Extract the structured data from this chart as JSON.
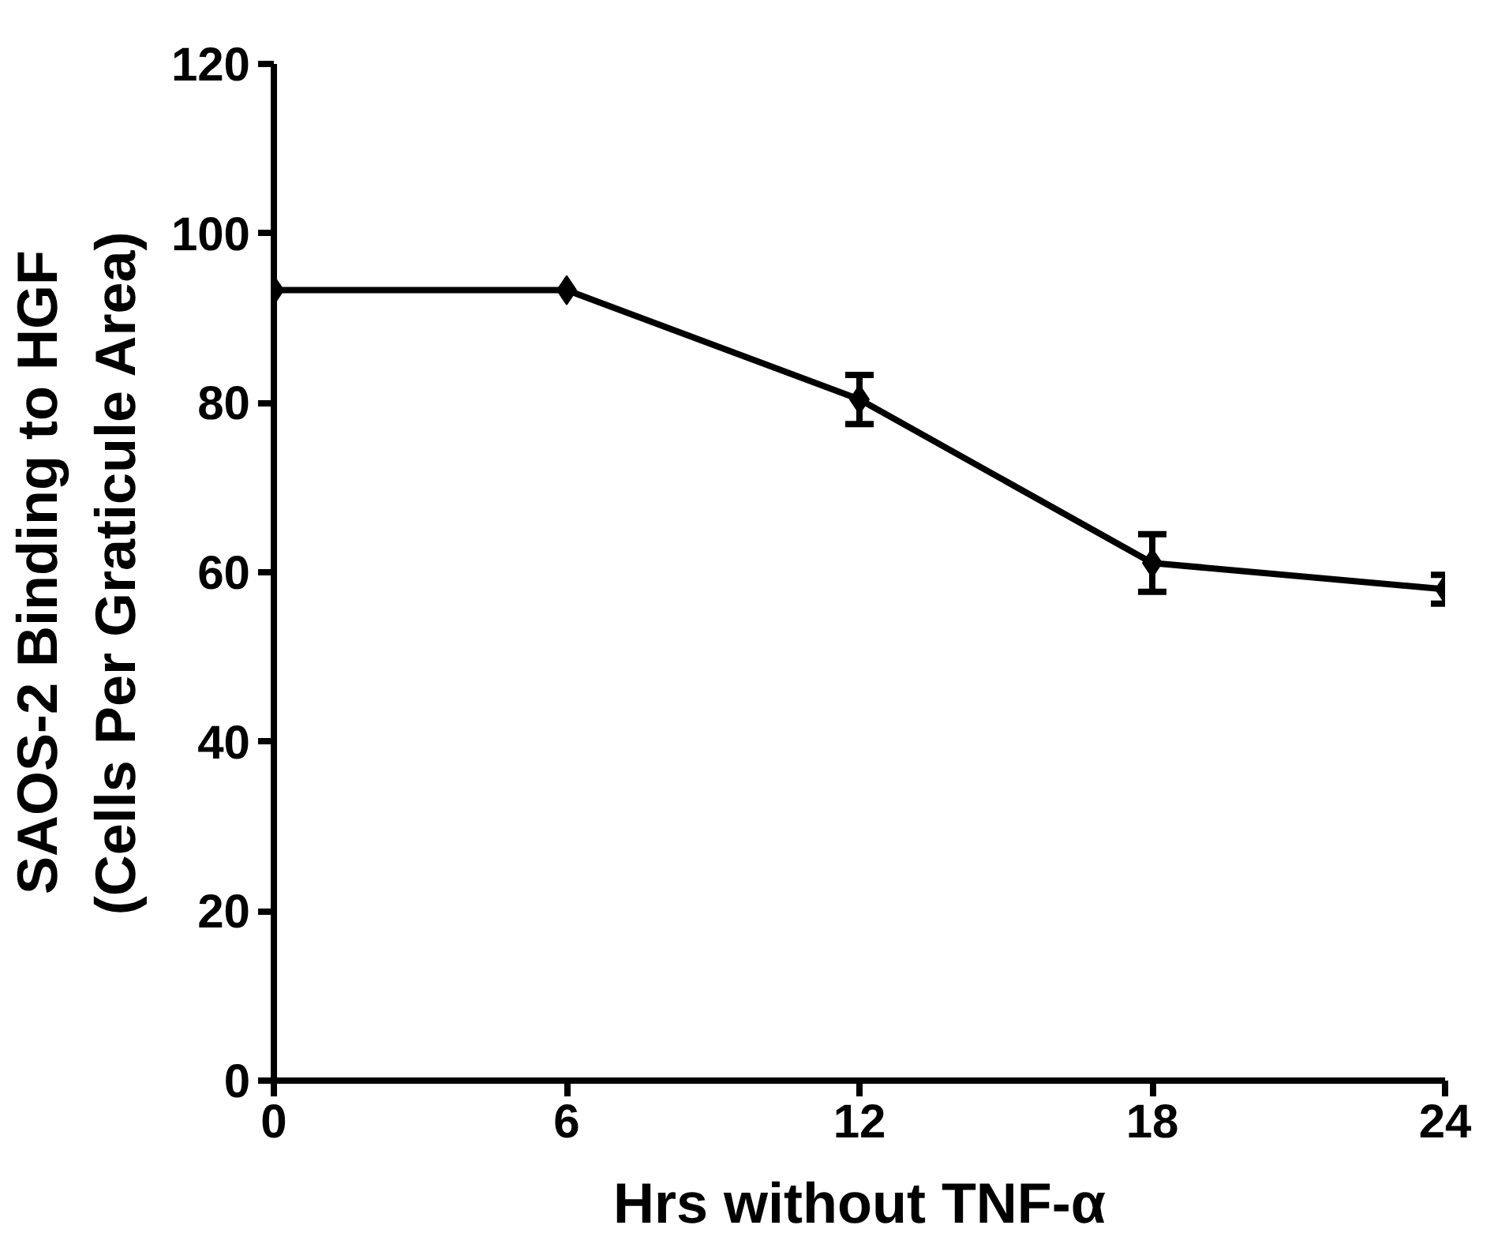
{
  "chart_data": {
    "type": "line",
    "xlabel": "Hrs without TNF-α",
    "ylabel": "SAOS-2 Binding to HGF\n(Cells Per Graticule Area)",
    "x": [
      0,
      6,
      12,
      18,
      24
    ],
    "series": [
      {
        "color": "#000000",
        "values": [
          93.3,
          93.3,
          80.4,
          61.1,
          58.0
        ],
        "errors": [
          null,
          null,
          2.9,
          3.4,
          1.7
        ]
      }
    ],
    "xlim": [
      0,
      24
    ],
    "xticks": [
      0,
      6,
      12,
      18,
      24
    ],
    "ylim": [
      0,
      120
    ],
    "yticks": [
      0,
      20,
      40,
      60,
      80,
      100,
      120
    ],
    "grid": false,
    "marker": "diamond",
    "line_style": "solid"
  }
}
